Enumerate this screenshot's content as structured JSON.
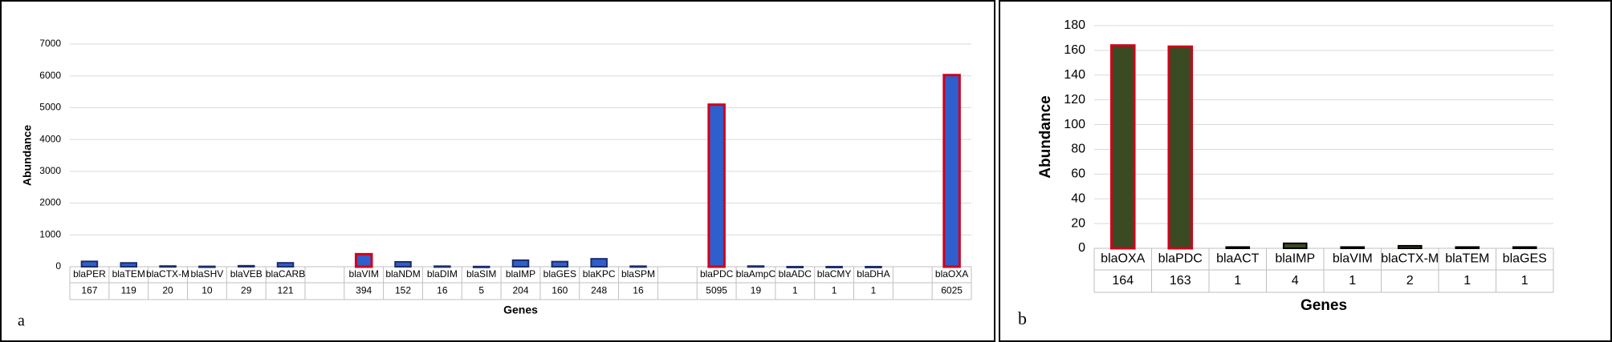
{
  "chart_data": [
    {
      "type": "bar",
      "panel_label": "a",
      "xlabel": "Genes",
      "ylabel": "Abundance",
      "categories": [
        "blaPER",
        "blaTEM",
        "blaCTX-M",
        "blaSHV",
        "blaVEB",
        "blaCARB",
        null,
        "blaVIM",
        "blaNDM",
        "blaDIM",
        "blaSIM",
        "blaIMP",
        "blaGES",
        "blaKPC",
        "blaSPM",
        null,
        "blaPDC",
        "blaAmpC",
        "blaADC",
        "blaCMY",
        "blaDHA",
        null,
        "blaOXA"
      ],
      "values": [
        167,
        119,
        20,
        10,
        29,
        121,
        null,
        394,
        152,
        16,
        5,
        204,
        160,
        248,
        16,
        null,
        5095,
        19,
        1,
        1,
        1,
        null,
        6025
      ],
      "color": "#2f5fcc",
      "edgecolors": [
        "#1b2d6b",
        "#1b2d6b",
        "#1b2d6b",
        "#1b2d6b",
        "#1b2d6b",
        "#1b2d6b",
        null,
        "#d0021b",
        "#1b2d6b",
        "#1b2d6b",
        "#1b2d6b",
        "#1b2d6b",
        "#1b2d6b",
        "#1b2d6b",
        "#1b2d6b",
        null,
        "#d0021b",
        "#1b2d6b",
        "#1b2d6b",
        "#1b2d6b",
        "#1b2d6b",
        null,
        "#d0021b"
      ],
      "ylim": [
        0,
        7000
      ],
      "yticks": [
        0,
        1000,
        2000,
        3000,
        4000,
        5000,
        6000,
        7000
      ],
      "grid": true
    },
    {
      "type": "bar",
      "panel_label": "b",
      "xlabel": "Genes",
      "ylabel": "Abundance",
      "categories": [
        "blaOXA",
        "blaPDC",
        "blaACT",
        "blaIMP",
        "blaVIM",
        "blaCTX-M",
        "blaTEM",
        "blaGES"
      ],
      "values": [
        164,
        163,
        1,
        4,
        1,
        2,
        1,
        1
      ],
      "color": "#3a4a22",
      "edgecolors": [
        "#d0021b",
        "#d0021b",
        "#000000",
        "#000000",
        "#000000",
        "#000000",
        "#000000",
        "#000000"
      ],
      "ylim": [
        0,
        180
      ],
      "yticks": [
        0,
        20,
        40,
        60,
        80,
        100,
        120,
        140,
        160,
        180
      ],
      "grid": true
    }
  ]
}
